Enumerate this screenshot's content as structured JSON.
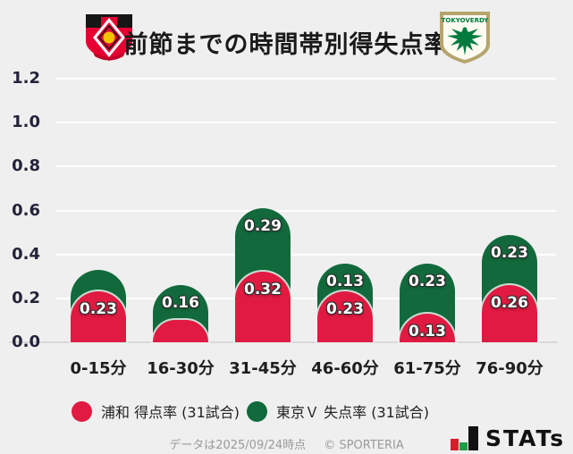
{
  "header": {
    "title": "前節までの時間帯別得失点率",
    "left_logo": "urawa-reds-crest",
    "right_logo": "tokyo-verdy-crest",
    "verdy_logo_text": "TOKYOVERDY"
  },
  "chart_data": {
    "type": "bar",
    "subtype": "stacked-rounded-pill",
    "title": "前節までの時間帯別得失点率",
    "categories": [
      "0-15分",
      "16-30分",
      "31-45分",
      "46-60分",
      "61-75分",
      "76-90分"
    ],
    "series": [
      {
        "name": "浦和 得点率 (31試合)",
        "color": "#e11a41",
        "values": [
          0.23,
          0.1,
          0.32,
          0.23,
          0.13,
          0.26
        ],
        "labels": [
          "0.23",
          "",
          "0.32",
          "0.23",
          "0.13",
          "0.26"
        ]
      },
      {
        "name": "東京Ｖ 失点率 (31試合)",
        "color": "#126a3c",
        "values": [
          0.1,
          0.16,
          0.29,
          0.13,
          0.23,
          0.23
        ],
        "labels": [
          "",
          "0.16",
          "0.29",
          "0.13",
          "0.23",
          "0.23"
        ]
      }
    ],
    "xlabel": "",
    "ylabel": "",
    "ylim": [
      0,
      1.2
    ],
    "yticks": [
      0.0,
      0.2,
      0.4,
      0.6,
      0.8,
      1.0,
      1.2
    ],
    "grid": true,
    "legend_position": "bottom"
  },
  "footer": {
    "date_note": "データは2025/09/24時点",
    "copyright": "© SPORTERIA",
    "logo_text": "STATs"
  }
}
